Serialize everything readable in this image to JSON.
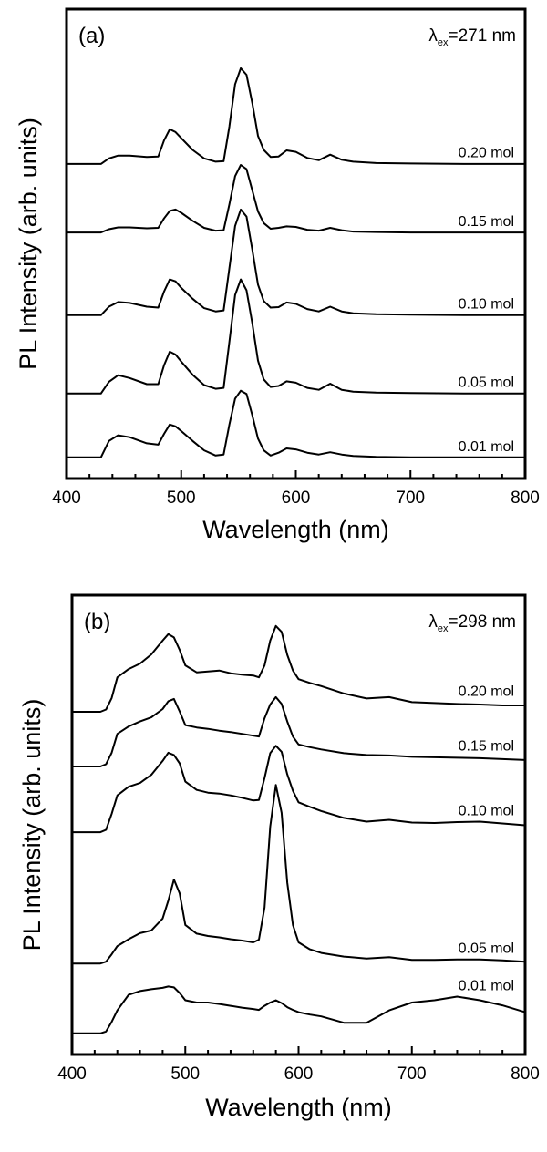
{
  "chart_data": [
    {
      "type": "line",
      "panel_label": "(a)",
      "excitation": {
        "symbol": "λ",
        "subscript": "ex",
        "value": "=271 nm"
      },
      "xlabel": "Wavelength (nm)",
      "ylabel": "PL Intensity (arb. units)",
      "xlim": [
        400,
        800
      ],
      "ylim": [
        0,
        100
      ],
      "xticks": [
        400,
        500,
        600,
        700,
        800
      ],
      "minor_tick_step": 20,
      "grid": false,
      "x": [
        400,
        430,
        437,
        445,
        455,
        470,
        480,
        485,
        490,
        495,
        500,
        510,
        520,
        530,
        537,
        542,
        547,
        552,
        557,
        562,
        567,
        572,
        578,
        585,
        592,
        600,
        610,
        620,
        630,
        640,
        650,
        670,
        700,
        750,
        800
      ],
      "series": [
        {
          "name": "0.20 mol",
          "offset": 67.0,
          "values": [
            0,
            0,
            1.2,
            1.8,
            1.8,
            1.5,
            1.6,
            5,
            7.4,
            6.8,
            5.5,
            3,
            1.2,
            0.5,
            0.6,
            8,
            17,
            20.4,
            19,
            13,
            6,
            3,
            1.5,
            1.6,
            2.9,
            2.6,
            1.3,
            0.8,
            2,
            0.9,
            0.5,
            0.2,
            0.1,
            0,
            0
          ]
        },
        {
          "name": "0.15 mol",
          "offset": 52.4,
          "values": [
            0,
            0,
            0.7,
            1.1,
            1.1,
            0.9,
            1.0,
            3,
            4.6,
            4.9,
            4.2,
            2.5,
            1,
            0.4,
            0.5,
            6,
            12,
            14.4,
            13.5,
            9,
            4.5,
            2,
            0.8,
            1,
            1.3,
            1.2,
            0.6,
            0.4,
            1.0,
            0.5,
            0.2,
            0.1,
            0,
            0,
            0
          ]
        },
        {
          "name": "0.10 mol",
          "offset": 34.8,
          "values": [
            0,
            0,
            1.8,
            2.8,
            2.6,
            1.8,
            1.6,
            5,
            7.6,
            7.2,
            5.8,
            3.5,
            1.5,
            0.8,
            1,
            10,
            19,
            22.5,
            21,
            14,
            6.5,
            3,
            1.6,
            1.7,
            2.7,
            2.4,
            1.3,
            0.8,
            1.8,
            0.8,
            0.4,
            0.2,
            0.1,
            0,
            0
          ]
        },
        {
          "name": "0.05 mol",
          "offset": 18.1,
          "values": [
            0,
            0,
            2.5,
            3.9,
            3.3,
            2,
            2,
            6,
            8.9,
            8.3,
            6.8,
            4,
            1.8,
            1,
            1.2,
            11,
            21,
            24.3,
            22,
            15,
            7,
            3,
            1.4,
            1.6,
            2.6,
            2.3,
            1.2,
            0.8,
            2.1,
            0.8,
            0.4,
            0.2,
            0.1,
            0,
            0
          ]
        },
        {
          "name": "0.01 mol",
          "offset": 4.5,
          "values": [
            0,
            0,
            3.5,
            4.7,
            4.3,
            3,
            2.7,
            5,
            7,
            6.6,
            5.6,
            3.5,
            1.5,
            0.4,
            0.6,
            7,
            12.5,
            14.2,
            13.5,
            9,
            4,
            1.5,
            0.4,
            1,
            1.9,
            1.7,
            1,
            0.6,
            1.1,
            0.6,
            0.3,
            0.1,
            0,
            0,
            0
          ]
        }
      ]
    },
    {
      "type": "line",
      "panel_label": "(b)",
      "excitation": {
        "symbol": "λ",
        "subscript": "ex",
        "value": "=298 nm"
      },
      "xlabel": "Wavelength (nm)",
      "ylabel": "PL Intensity (arb. units)",
      "xlim": [
        400,
        800
      ],
      "ylim": [
        0,
        100
      ],
      "xticks": [
        400,
        500,
        600,
        700,
        800
      ],
      "minor_tick_step": 20,
      "grid": false,
      "x": [
        400,
        425,
        430,
        435,
        440,
        450,
        460,
        470,
        480,
        485,
        490,
        495,
        500,
        510,
        520,
        530,
        540,
        550,
        560,
        565,
        570,
        575,
        580,
        585,
        590,
        595,
        600,
        610,
        620,
        640,
        660,
        680,
        700,
        720,
        740,
        760,
        780,
        800
      ],
      "series": [
        {
          "name": "0.20 mol",
          "offset": 74.6,
          "values": [
            0,
            0,
            0.5,
            3,
            7.5,
            9.3,
            10.5,
            12.5,
            15.5,
            16.9,
            16.2,
            13.5,
            10.1,
            8.6,
            8.8,
            9,
            8.4,
            8.1,
            7.9,
            7.5,
            10.1,
            15.5,
            18.7,
            17.4,
            12.4,
            9,
            7.1,
            6.3,
            5.6,
            4,
            2.9,
            3.2,
            2.1,
            1.9,
            1.7,
            1.6,
            1.4,
            1.4
          ]
        },
        {
          "name": "0.15 mol",
          "offset": 62.7,
          "values": [
            0,
            0,
            0.5,
            3,
            7.1,
            8.7,
            9.8,
            10.7,
            12.5,
            14.2,
            14.7,
            12,
            9,
            8.5,
            8.2,
            7.8,
            7.5,
            7.1,
            6.7,
            6.5,
            10.5,
            13.5,
            15.1,
            13.6,
            9.8,
            6.5,
            4.8,
            4.2,
            3.7,
            2.9,
            2.5,
            2.4,
            2.1,
            2,
            1.9,
            1.8,
            1.6,
            1.4
          ]
        },
        {
          "name": "0.10 mol",
          "offset": 48.4,
          "values": [
            0,
            0,
            0.5,
            4,
            8,
            9.9,
            10.7,
            12.5,
            15.5,
            17.3,
            16.8,
            15,
            11,
            9.2,
            8.6,
            8.4,
            8,
            7.5,
            6.9,
            7,
            11.8,
            17.2,
            18.8,
            17.5,
            12.6,
            9,
            6.5,
            5.5,
            4.6,
            3.1,
            2.3,
            2.7,
            2.1,
            2,
            2.2,
            2.3,
            1.9,
            1.5
          ]
        },
        {
          "name": "0.05 mol",
          "offset": 19.8,
          "values": [
            0,
            0,
            0.4,
            2,
            3.8,
            5.3,
            6.6,
            7.2,
            9.8,
            13.7,
            18.3,
            15.3,
            8.4,
            6.5,
            6,
            5.7,
            5.3,
            5,
            4.6,
            5.2,
            12.2,
            29.8,
            38.9,
            32.8,
            17.6,
            8.4,
            4.6,
            3.1,
            2.3,
            1.5,
            1.1,
            1.4,
            0.8,
            0.8,
            0.9,
            0.9,
            0.7,
            0.4
          ]
        },
        {
          "name": "0.01 mol",
          "offset": 4.6,
          "values": [
            0,
            0,
            0.4,
            2.5,
            5,
            8.4,
            9.2,
            9.6,
            9.9,
            10.2,
            10,
            8.8,
            7.2,
            6.7,
            6.7,
            6.4,
            6,
            5.6,
            5.3,
            5.1,
            6,
            6.7,
            7.2,
            6.6,
            5.7,
            5.1,
            4.6,
            4.1,
            3.7,
            2.3,
            2.3,
            5,
            6.7,
            7.2,
            8,
            7.2,
            6.1,
            4.6
          ]
        }
      ]
    }
  ]
}
